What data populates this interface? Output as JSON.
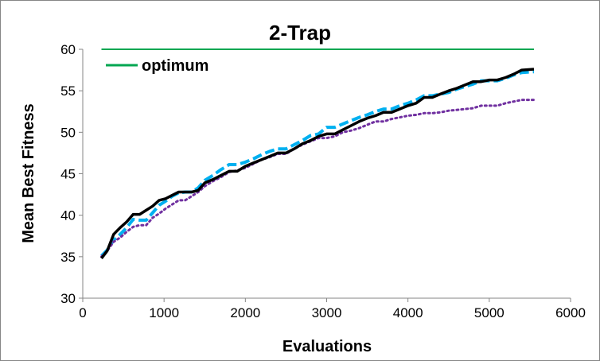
{
  "chart_data": {
    "type": "line",
    "title": "2-Trap",
    "xlabel": "Evaluations",
    "ylabel": "Mean Best Fitness",
    "xlim": [
      0,
      6000
    ],
    "ylim": [
      30,
      60
    ],
    "xticks": [
      0,
      1000,
      2000,
      3000,
      4000,
      5000,
      6000
    ],
    "yticks": [
      30,
      35,
      40,
      45,
      50,
      55,
      60
    ],
    "grid": false,
    "legend_position": "top-left",
    "series": [
      {
        "name": "optimum",
        "color": "#00a651",
        "style": "solid",
        "x": [
          230,
          5550
        ],
        "y": [
          60,
          60
        ]
      },
      {
        "color": "#00b0f0",
        "style": "dashed",
        "x": [
          230,
          300,
          380,
          460,
          540,
          620,
          700,
          780,
          860,
          940,
          1020,
          1100,
          1180,
          1260,
          1340,
          1420,
          1500,
          1600,
          1700,
          1800,
          1900,
          2000,
          2100,
          2200,
          2300,
          2400,
          2500,
          2600,
          2700,
          2800,
          2900,
          3000,
          3100,
          3200,
          3300,
          3400,
          3500,
          3600,
          3700,
          3800,
          3900,
          4000,
          4100,
          4200,
          4300,
          4400,
          4500,
          4600,
          4700,
          4800,
          4900,
          5000,
          5100,
          5200,
          5300,
          5400,
          5550
        ],
        "y": [
          35.1,
          35.8,
          37.0,
          37.7,
          38.5,
          39.5,
          39.4,
          39.4,
          40.3,
          41.2,
          41.7,
          42.3,
          42.7,
          42.8,
          42.8,
          43.3,
          44.2,
          44.8,
          45.5,
          46.1,
          46.1,
          46.4,
          46.8,
          47.3,
          47.7,
          48.0,
          48.0,
          48.5,
          49.0,
          49.6,
          49.8,
          50.6,
          50.6,
          51.0,
          51.4,
          51.8,
          52.1,
          52.5,
          52.8,
          52.8,
          53.2,
          53.5,
          53.9,
          54.4,
          54.4,
          54.6,
          54.8,
          55.2,
          55.5,
          55.8,
          56.2,
          56.2,
          56.2,
          56.5,
          56.9,
          57.2,
          57.3
        ]
      },
      {
        "color": "#7030a0",
        "style": "dotted",
        "x": [
          230,
          300,
          380,
          460,
          540,
          620,
          700,
          780,
          860,
          940,
          1020,
          1100,
          1180,
          1260,
          1340,
          1420,
          1500,
          1600,
          1700,
          1800,
          1900,
          2000,
          2100,
          2200,
          2300,
          2400,
          2500,
          2600,
          2700,
          2800,
          2900,
          3000,
          3100,
          3200,
          3300,
          3400,
          3500,
          3600,
          3700,
          3800,
          3900,
          4000,
          4100,
          4200,
          4300,
          4400,
          4500,
          4600,
          4700,
          4800,
          4900,
          5000,
          5100,
          5200,
          5300,
          5400,
          5550
        ],
        "y": [
          35.0,
          35.7,
          36.8,
          37.3,
          38.0,
          38.6,
          38.8,
          38.8,
          39.7,
          40.2,
          40.8,
          41.3,
          41.8,
          41.8,
          42.3,
          42.8,
          43.5,
          44.1,
          44.6,
          45.2,
          45.4,
          45.7,
          46.2,
          46.7,
          47.0,
          47.4,
          47.4,
          48.0,
          48.5,
          48.9,
          49.3,
          49.3,
          49.5,
          50.0,
          50.2,
          50.5,
          50.9,
          51.3,
          51.3,
          51.6,
          51.8,
          52.0,
          52.1,
          52.3,
          52.3,
          52.4,
          52.6,
          52.7,
          52.8,
          52.9,
          53.2,
          53.2,
          53.2,
          53.5,
          53.7,
          53.9,
          53.9
        ]
      },
      {
        "color": "#000000",
        "style": "solid",
        "x": [
          230,
          300,
          380,
          460,
          540,
          620,
          700,
          780,
          860,
          940,
          1020,
          1100,
          1180,
          1260,
          1340,
          1420,
          1500,
          1600,
          1700,
          1800,
          1900,
          2000,
          2100,
          2200,
          2300,
          2400,
          2500,
          2600,
          2700,
          2800,
          2900,
          3000,
          3100,
          3200,
          3300,
          3400,
          3500,
          3600,
          3700,
          3800,
          3900,
          4000,
          4100,
          4200,
          4300,
          4400,
          4500,
          4600,
          4700,
          4800,
          4900,
          5000,
          5100,
          5200,
          5300,
          5400,
          5550
        ],
        "y": [
          34.8,
          35.7,
          37.7,
          38.5,
          39.2,
          40.1,
          40.1,
          40.6,
          41.1,
          41.8,
          42.0,
          42.4,
          42.8,
          42.8,
          42.8,
          43.0,
          43.9,
          44.3,
          44.8,
          45.3,
          45.3,
          45.9,
          46.3,
          46.7,
          47.1,
          47.5,
          47.5,
          48.0,
          48.6,
          49.0,
          49.5,
          49.8,
          49.8,
          50.3,
          50.8,
          51.3,
          51.7,
          52.0,
          52.4,
          52.4,
          52.8,
          53.2,
          53.5,
          54.2,
          54.2,
          54.6,
          55.0,
          55.3,
          55.7,
          56.1,
          56.1,
          56.3,
          56.3,
          56.6,
          57.0,
          57.5,
          57.6
        ]
      }
    ]
  }
}
